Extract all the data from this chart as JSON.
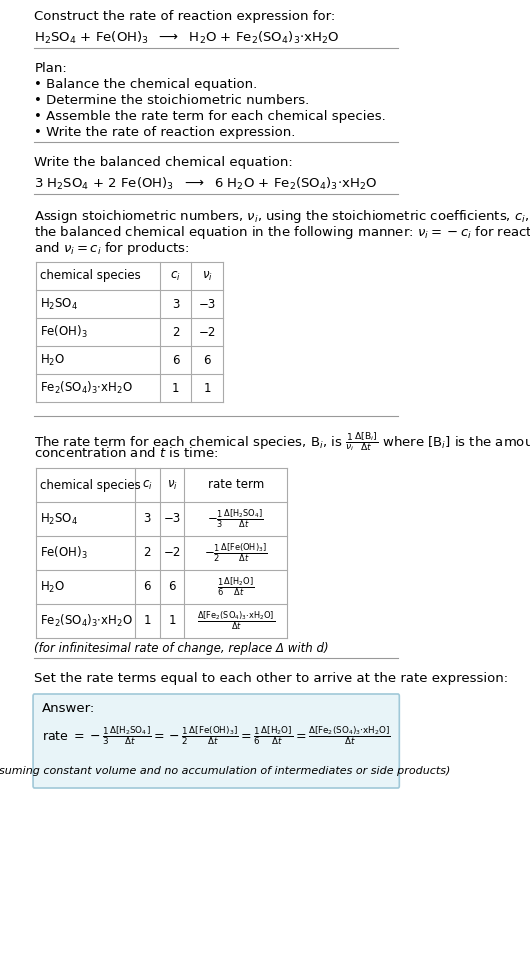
{
  "bg_color": "#ffffff",
  "text_color": "#000000",
  "title_line1": "Construct the rate of reaction expression for:",
  "reaction_unbalanced": "H$_2$SO$_4$ + Fe(OH)$_3$  $\\longrightarrow$  H$_2$O + Fe$_2$(SO$_4$)$_3$$\\cdot$xH$_2$O",
  "plan_header": "Plan:",
  "plan_items": [
    "• Balance the chemical equation.",
    "• Determine the stoichiometric numbers.",
    "• Assemble the rate term for each chemical species.",
    "• Write the rate of reaction expression."
  ],
  "balanced_header": "Write the balanced chemical equation:",
  "reaction_balanced": "3 H$_2$SO$_4$ + 2 Fe(OH)$_3$  $\\longrightarrow$  6 H$_2$O + Fe$_2$(SO$_4$)$_3$$\\cdot$xH$_2$O",
  "stoich_intro": "Assign stoichiometric numbers, $\\nu_i$, using the stoichiometric coefficients, $c_i$, from\nthe balanced chemical equation in the following manner: $\\nu_i = -c_i$ for reactants\nand $\\nu_i = c_i$ for products:",
  "table1_headers": [
    "chemical species",
    "$c_i$",
    "$\\nu_i$"
  ],
  "table1_rows": [
    [
      "H$_2$SO$_4$",
      "3",
      "−3"
    ],
    [
      "Fe(OH)$_3$",
      "2",
      "−2"
    ],
    [
      "H$_2$O",
      "6",
      "6"
    ],
    [
      "Fe$_2$(SO$_4$)$_3$$\\cdot$xH$_2$O",
      "1",
      "1"
    ]
  ],
  "rate_intro": "The rate term for each chemical species, B$_i$, is $\\frac{1}{\\nu_i}\\frac{\\Delta[\\mathrm{B}_i]}{\\Delta t}$ where [B$_i$] is the amount\nconcentration and $t$ is time:",
  "table2_headers": [
    "chemical species",
    "$c_i$",
    "$\\nu_i$",
    "rate term"
  ],
  "table2_rows": [
    [
      "H$_2$SO$_4$",
      "3",
      "−3",
      "$-\\frac{1}{3}\\frac{\\Delta[\\mathrm{H_2SO_4}]}{\\Delta t}$"
    ],
    [
      "Fe(OH)$_3$",
      "2",
      "−2",
      "$-\\frac{1}{2}\\frac{\\Delta[\\mathrm{Fe(OH)_3}]}{\\Delta t}$"
    ],
    [
      "H$_2$O",
      "6",
      "6",
      "$\\frac{1}{6}\\frac{\\Delta[\\mathrm{H_2O}]}{\\Delta t}$"
    ],
    [
      "Fe$_2$(SO$_4$)$_3$$\\cdot$xH$_2$O",
      "1",
      "1",
      "$\\frac{\\Delta[\\mathrm{Fe_2(SO_4)_3{\\cdot}xH_2O}]}{\\Delta t}$"
    ]
  ],
  "infinitesimal_note": "(for infinitesimal rate of change, replace Δ with d)",
  "set_equal_text": "Set the rate terms equal to each other to arrive at the rate expression:",
  "answer_box_color": "#e8f4f8",
  "answer_box_border": "#a0c8d8",
  "answer_label": "Answer:",
  "rate_expression": "rate $= -\\frac{1}{3}\\frac{\\Delta[\\mathrm{H_2SO_4}]}{\\Delta t} = -\\frac{1}{2}\\frac{\\Delta[\\mathrm{Fe(OH)_3}]}{\\Delta t} = \\frac{1}{6}\\frac{\\Delta[\\mathrm{H_2O}]}{\\Delta t} = \\frac{\\Delta[\\mathrm{Fe_2(SO_4)_3{\\cdot}xH_2O}]}{\\Delta t}$",
  "assuming_note": "(assuming constant volume and no accumulation of intermediates or side products)"
}
